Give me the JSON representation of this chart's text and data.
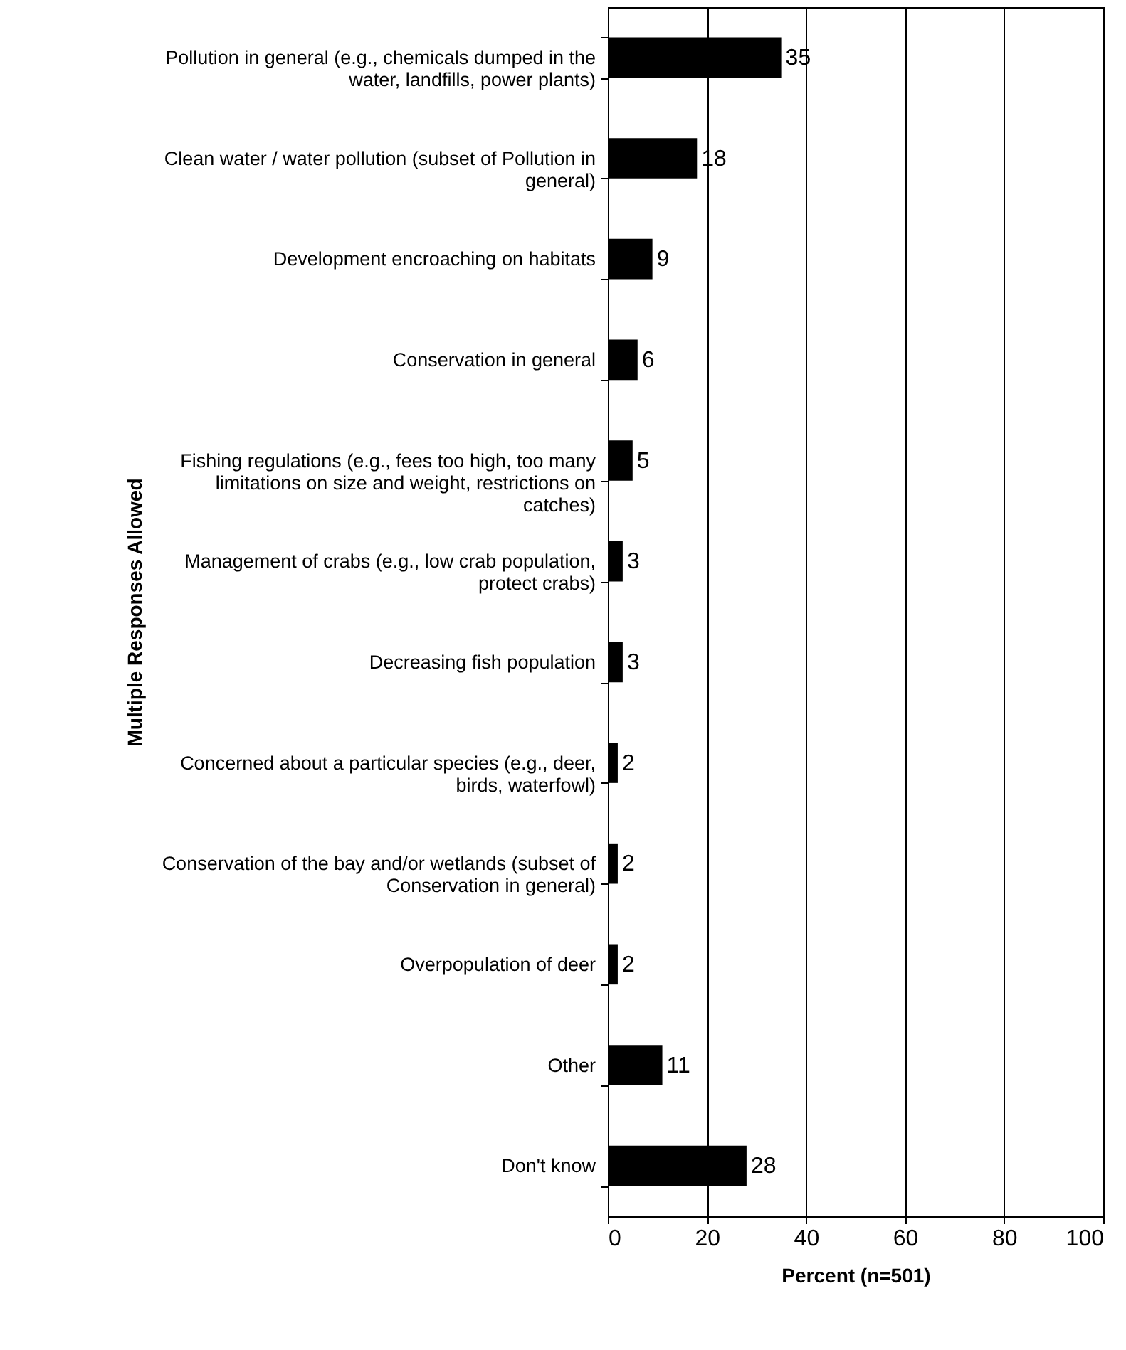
{
  "chart_data": {
    "type": "bar",
    "orientation": "horizontal",
    "xlabel": "Percent (n=501)",
    "ylabel": "Multiple Responses Allowed",
    "categories": [
      "Pollution in general (e.g., chemicals dumped in the water, landfills, power plants)",
      "Clean water / water pollution (subset of Pollution in general)",
      "Development encroaching on habitats",
      "Conservation in general",
      "Fishing regulations (e.g., fees too high, too many limitations on size and weight, restrictions on catches)",
      "Management of crabs (e.g., low crab population, protect crabs)",
      "Decreasing fish population",
      "Concerned about a particular species (e.g., deer, birds, waterfowl)",
      "Conservation of the bay and/or wetlands (subset of Conservation in general)",
      "Overpopulation of deer",
      "Other",
      "Don't know"
    ],
    "values": [
      35,
      18,
      9,
      6,
      5,
      3,
      3,
      2,
      2,
      2,
      11,
      28
    ],
    "color": "#000000",
    "xlim": [
      0,
      100
    ],
    "xticks": [
      0,
      20,
      40,
      60,
      80,
      100
    ],
    "grid": "x",
    "data_labels": true
  }
}
